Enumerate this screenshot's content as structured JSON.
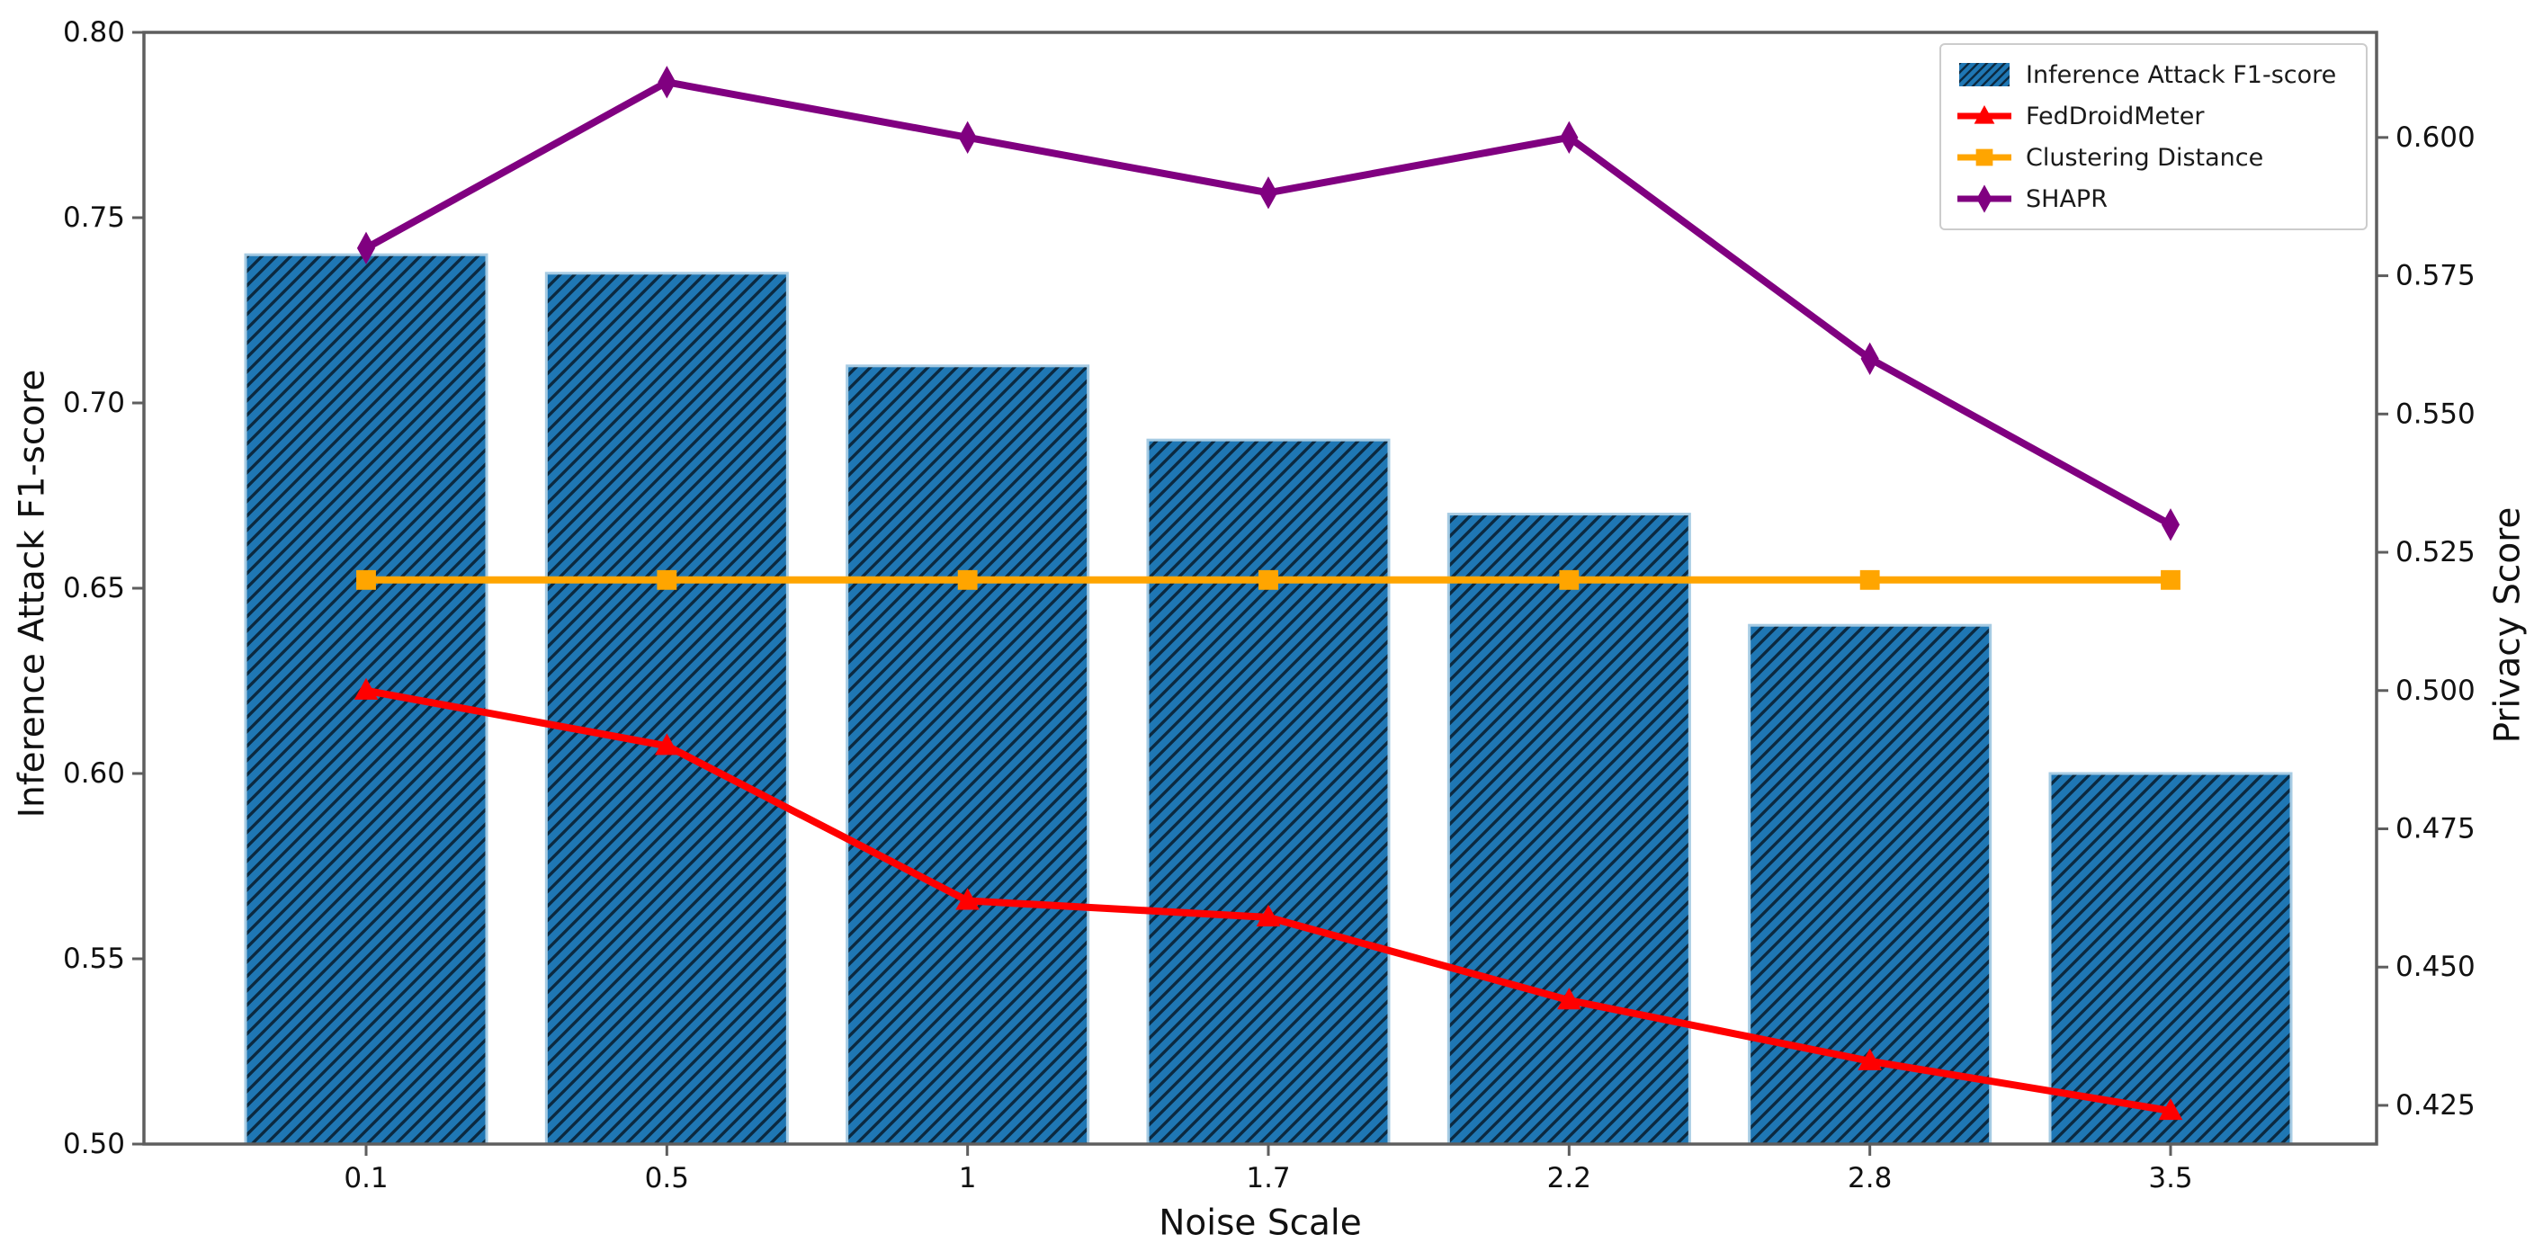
{
  "chart_data": {
    "type": "bar",
    "title": "",
    "xlabel": "Noise Scale",
    "ylabel_left": "Inference Attack F1-score",
    "ylabel_right": "Privacy Score",
    "categories": [
      "0.1",
      "0.5",
      "1",
      "1.7",
      "2.2",
      "2.8",
      "3.5"
    ],
    "ylim_left": [
      0.5,
      0.8
    ],
    "ylim_right": [
      0.418,
      0.619
    ],
    "yticks_left": [
      "0.80",
      "0.75",
      "0.70",
      "0.65",
      "0.60",
      "0.55",
      "0.50"
    ],
    "yticks_right": [
      "0.600",
      "0.575",
      "0.550",
      "0.525",
      "0.500",
      "0.475",
      "0.450",
      "0.425"
    ],
    "grid": false,
    "legend_position": "upper right",
    "bar_series": {
      "name": "Inference Attack F1-score",
      "axis": "left",
      "values": [
        0.74,
        0.735,
        0.71,
        0.69,
        0.67,
        0.64,
        0.6
      ],
      "color": "#1f77b4",
      "hatch": "//",
      "hatch_color": "#0b2940",
      "edge_color": "#a6cbe3"
    },
    "line_series": [
      {
        "name": "FedDroidMeter",
        "axis": "right",
        "marker": "triangle-up",
        "color": "#ff0000",
        "values": [
          0.5,
          0.49,
          0.462,
          0.459,
          0.444,
          0.433,
          0.424
        ]
      },
      {
        "name": "Clustering Distance",
        "axis": "right",
        "marker": "square",
        "color": "#ffa500",
        "values": [
          0.52,
          0.52,
          0.52,
          0.52,
          0.52,
          0.52,
          0.52
        ]
      },
      {
        "name": "SHAPR",
        "axis": "right",
        "marker": "thin-diamond",
        "color": "#800080",
        "values": [
          0.58,
          0.61,
          0.6,
          0.59,
          0.6,
          0.56,
          0.53
        ]
      }
    ],
    "legend_entries": [
      "Inference Attack F1-score",
      "FedDroidMeter",
      "Clustering Distance",
      "SHAPR"
    ],
    "spine_color": "#5e5e5e",
    "tick_label_color": "#111111"
  }
}
